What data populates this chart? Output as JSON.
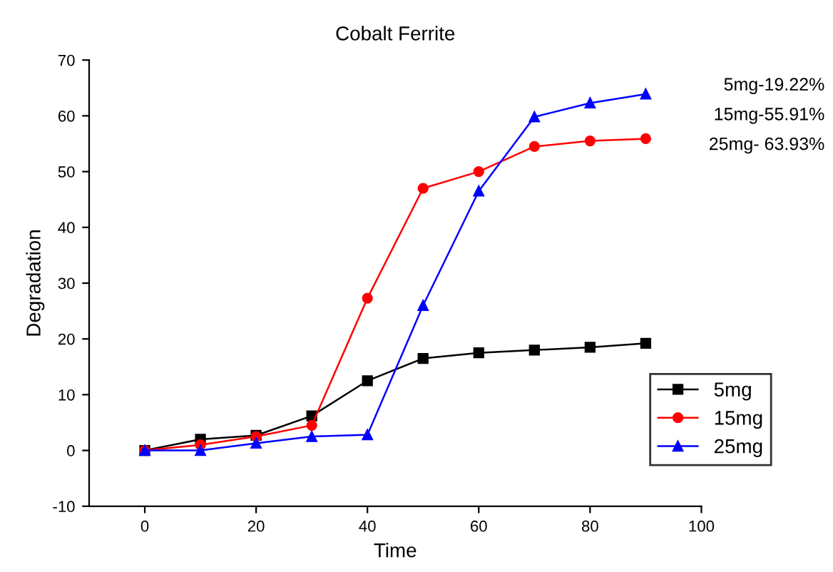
{
  "chart_data": {
    "type": "line",
    "title": "Cobalt Ferrite",
    "xlabel": "Time",
    "ylabel": "Degradation",
    "x": [
      0,
      10,
      20,
      30,
      40,
      50,
      60,
      70,
      80,
      90
    ],
    "series": [
      {
        "name": "5mg",
        "color": "#000000",
        "marker": "square",
        "values": [
          0,
          2,
          2.7,
          6.2,
          12.5,
          16.5,
          17.5,
          18,
          18.5,
          19.2
        ]
      },
      {
        "name": "15mg",
        "color": "#ff0000",
        "marker": "circle",
        "values": [
          0,
          1,
          2.5,
          4.5,
          27.3,
          47,
          50,
          54.5,
          55.5,
          55.9
        ]
      },
      {
        "name": "25mg",
        "color": "#0000ff",
        "marker": "triangle",
        "values": [
          0,
          0,
          1.3,
          2.5,
          2.8,
          26,
          46.5,
          59.8,
          62.3,
          63.9
        ]
      }
    ],
    "xlim": [
      -10,
      100
    ],
    "xticks": [
      0,
      20,
      40,
      60,
      80,
      100
    ],
    "ylim": [
      -10,
      70
    ],
    "yticks": [
      -10,
      0,
      10,
      20,
      30,
      40,
      50,
      60,
      70
    ],
    "grid": false,
    "legend": "bottom right",
    "line_style": "solid",
    "annotations": [
      "5mg-19.22%",
      "15mg-55.91%",
      "25mg- 63.93%"
    ]
  }
}
